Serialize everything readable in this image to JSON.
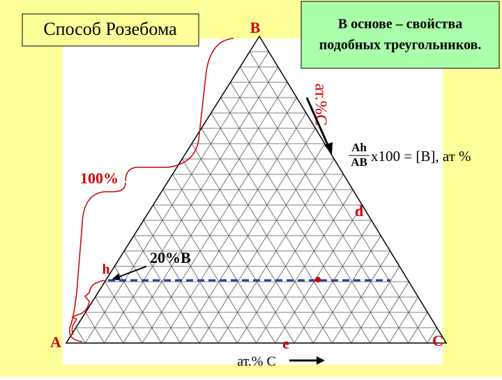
{
  "title": "Способ Розебома",
  "note": [
    "В основе – свойства",
    "подобных треугольников."
  ],
  "vertices": {
    "a": "A",
    "b": "B",
    "c": "C"
  },
  "labels": {
    "at_c_side": "ат.%С",
    "full": "100%",
    "d": "d",
    "twenty": "20%B",
    "h": "h",
    "e": "e",
    "at_c_bottom": "ат.% С"
  },
  "formula": {
    "numerator": "Ah",
    "denominator": "AB",
    "rest": "x100 =  [B], ат %"
  }
}
